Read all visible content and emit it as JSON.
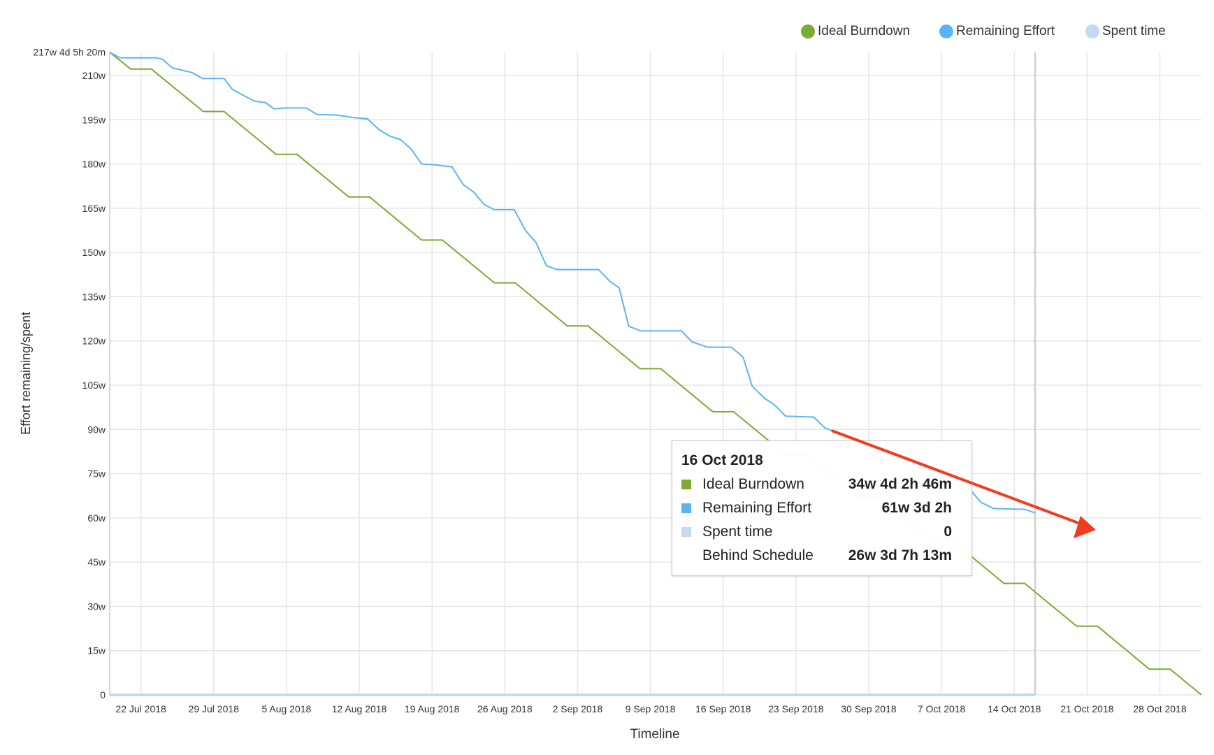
{
  "chart_data": {
    "type": "line",
    "title": "",
    "xlabel": "Timeline",
    "ylabel": "Effort remaining/spent",
    "x_range": [
      "2018-07-19",
      "2018-11-01"
    ],
    "ylim": [
      0,
      217.9
    ],
    "grid": true,
    "legend_placement": "top-right",
    "x_ticks": [
      "22 Jul 2018",
      "29 Jul 2018",
      "5 Aug 2018",
      "12 Aug 2018",
      "19 Aug 2018",
      "26 Aug 2018",
      "2 Sep 2018",
      "9 Sep 2018",
      "16 Sep 2018",
      "23 Sep 2018",
      "30 Sep 2018",
      "7 Oct 2018",
      "14 Oct 2018",
      "21 Oct 2018",
      "28 Oct 2018"
    ],
    "x_tick_dates": [
      "2018-07-22",
      "2018-07-29",
      "2018-08-05",
      "2018-08-12",
      "2018-08-19",
      "2018-08-26",
      "2018-09-02",
      "2018-09-09",
      "2018-09-16",
      "2018-09-23",
      "2018-09-30",
      "2018-10-07",
      "2018-10-14",
      "2018-10-21",
      "2018-10-28"
    ],
    "y_ticks": [
      {
        "value": 0,
        "label": "0"
      },
      {
        "value": 15,
        "label": "15w"
      },
      {
        "value": 30,
        "label": "30w"
      },
      {
        "value": 45,
        "label": "45w"
      },
      {
        "value": 60,
        "label": "60w"
      },
      {
        "value": 75,
        "label": "75w"
      },
      {
        "value": 90,
        "label": "90w"
      },
      {
        "value": 105,
        "label": "105w"
      },
      {
        "value": 120,
        "label": "120w"
      },
      {
        "value": 135,
        "label": "135w"
      },
      {
        "value": 150,
        "label": "150w"
      },
      {
        "value": 165,
        "label": "165w"
      },
      {
        "value": 180,
        "label": "180w"
      },
      {
        "value": 195,
        "label": "195w"
      },
      {
        "value": 210,
        "label": "210w"
      },
      {
        "value": 217.9,
        "label": "217w 4d 5h 20m"
      }
    ],
    "today_marker": "2018-10-16",
    "series": [
      {
        "name": "Ideal Burndown",
        "color": "#7cab34",
        "points": [
          [
            "2018-07-19T00:00",
            217.9
          ],
          [
            "2018-07-21T00:00",
            212.2
          ],
          [
            "2018-07-23T00:00",
            212.2
          ],
          [
            "2018-07-28T00:00",
            197.8
          ],
          [
            "2018-07-30T00:00",
            197.8
          ],
          [
            "2018-08-04T00:00",
            183.3
          ],
          [
            "2018-08-06T00:00",
            183.3
          ],
          [
            "2018-08-11T00:00",
            168.8
          ],
          [
            "2018-08-13T00:00",
            168.8
          ],
          [
            "2018-08-18T00:00",
            154.2
          ],
          [
            "2018-08-20T00:00",
            154.2
          ],
          [
            "2018-08-25T00:00",
            139.7
          ],
          [
            "2018-08-27T00:00",
            139.7
          ],
          [
            "2018-09-01T00:00",
            125.1
          ],
          [
            "2018-09-03T00:00",
            125.1
          ],
          [
            "2018-09-08T00:00",
            110.6
          ],
          [
            "2018-09-10T00:00",
            110.6
          ],
          [
            "2018-09-15T00:00",
            96.0
          ],
          [
            "2018-09-17T00:00",
            96.0
          ],
          [
            "2018-09-22T00:00",
            81.5
          ],
          [
            "2018-09-24T00:00",
            81.5
          ],
          [
            "2018-09-29T00:00",
            66.9
          ],
          [
            "2018-10-01T00:00",
            66.9
          ],
          [
            "2018-10-06T00:00",
            52.4
          ],
          [
            "2018-10-08T00:00",
            52.4
          ],
          [
            "2018-10-13T00:00",
            37.8
          ],
          [
            "2018-10-15T00:00",
            37.8
          ],
          [
            "2018-10-20T00:00",
            23.3
          ],
          [
            "2018-10-22T00:00",
            23.3
          ],
          [
            "2018-10-27T00:00",
            8.7
          ],
          [
            "2018-10-29T00:00",
            8.7
          ],
          [
            "2018-11-01T00:00",
            0
          ]
        ]
      },
      {
        "name": "Remaining Effort",
        "color": "#5bb5f5",
        "points": [
          [
            "2018-07-19T00:00",
            217.9
          ],
          [
            "2018-07-20T00:00",
            216
          ],
          [
            "2018-07-23T12:00",
            216
          ],
          [
            "2018-07-24T02:00",
            215.5
          ],
          [
            "2018-07-25T00:00",
            212.6
          ],
          [
            "2018-07-26T22:00",
            211
          ],
          [
            "2018-07-27T22:00",
            209
          ],
          [
            "2018-07-30T00:00",
            209
          ],
          [
            "2018-07-30T19:00",
            205.3
          ],
          [
            "2018-07-31T19:00",
            203.4
          ],
          [
            "2018-08-01T22:00",
            201.3
          ],
          [
            "2018-08-03T00:00",
            200.8
          ],
          [
            "2018-08-03T19:00",
            198.7
          ],
          [
            "2018-08-04T22:00",
            199
          ],
          [
            "2018-08-06T22:00",
            199
          ],
          [
            "2018-08-07T22:00",
            196.8
          ],
          [
            "2018-08-09T19:00",
            196.6
          ],
          [
            "2018-08-11T07:00",
            195.8
          ],
          [
            "2018-08-12T19:00",
            195.3
          ],
          [
            "2018-08-13T22:00",
            191.6
          ],
          [
            "2018-08-14T22:00",
            189.5
          ],
          [
            "2018-08-16T00:00",
            188.2
          ],
          [
            "2018-08-17T00:00",
            185
          ],
          [
            "2018-08-18T00:00",
            180
          ],
          [
            "2018-08-19T07:00",
            179.7
          ],
          [
            "2018-08-20T22:00",
            179
          ],
          [
            "2018-08-22T00:00",
            173
          ],
          [
            "2018-08-23T00:00",
            170.5
          ],
          [
            "2018-08-24T00:00",
            166.3
          ],
          [
            "2018-08-25T00:00",
            164.5
          ],
          [
            "2018-08-26T22:00",
            164.5
          ],
          [
            "2018-08-28T00:00",
            157.4
          ],
          [
            "2018-08-29T00:00",
            153.4
          ],
          [
            "2018-08-30T00:00",
            145.5
          ],
          [
            "2018-08-31T00:00",
            144.2
          ],
          [
            "2018-09-04T00:00",
            144.2
          ],
          [
            "2018-09-05T02:00",
            140.3
          ],
          [
            "2018-09-06T00:00",
            138
          ],
          [
            "2018-09-06T22:00",
            125
          ],
          [
            "2018-09-08T02:00",
            123.4
          ],
          [
            "2018-09-12T00:00",
            123.4
          ],
          [
            "2018-09-13T00:00",
            119.7
          ],
          [
            "2018-09-14T12:00",
            117.9
          ],
          [
            "2018-09-16T19:00",
            117.9
          ],
          [
            "2018-09-17T22:00",
            114.5
          ],
          [
            "2018-09-18T19:00",
            104.7
          ],
          [
            "2018-09-20T00:00",
            100.5
          ],
          [
            "2018-09-20T22:00",
            98.4
          ],
          [
            "2018-09-22T00:00",
            94.5
          ],
          [
            "2018-09-24T17:00",
            94.2
          ],
          [
            "2018-09-25T19:00",
            90.5
          ],
          [
            "2018-09-26T22:00",
            89
          ],
          [
            "2018-09-30T00:00",
            85
          ],
          [
            "2018-10-05T00:00",
            76
          ],
          [
            "2018-10-09T17:00",
            69.7
          ],
          [
            "2018-10-10T19:00",
            65.3
          ],
          [
            "2018-10-12T00:00",
            63.2
          ],
          [
            "2018-10-15T00:00",
            62.9
          ],
          [
            "2018-10-16T00:00",
            61.7
          ]
        ]
      },
      {
        "name": "Spent time",
        "color": "#c5d9ef",
        "points": [
          [
            "2018-07-19T00:00",
            0
          ],
          [
            "2018-10-16T00:00",
            0
          ]
        ]
      }
    ],
    "tooltip": {
      "date": "16 Oct 2018",
      "rows": [
        {
          "label": "Ideal Burndown",
          "value": "34w 4d 2h 46m",
          "color": "#7cab34"
        },
        {
          "label": "Remaining Effort",
          "value": "61w 3d 2h",
          "color": "#5bb5f5"
        },
        {
          "label": "Spent time",
          "value": "0",
          "color": "#c5d9ef"
        },
        {
          "label": "Behind Schedule",
          "value": "26w 3d 7h 13m",
          "color": ""
        }
      ]
    },
    "annotation": {
      "type": "arrow",
      "color": "#f03c1f"
    }
  }
}
